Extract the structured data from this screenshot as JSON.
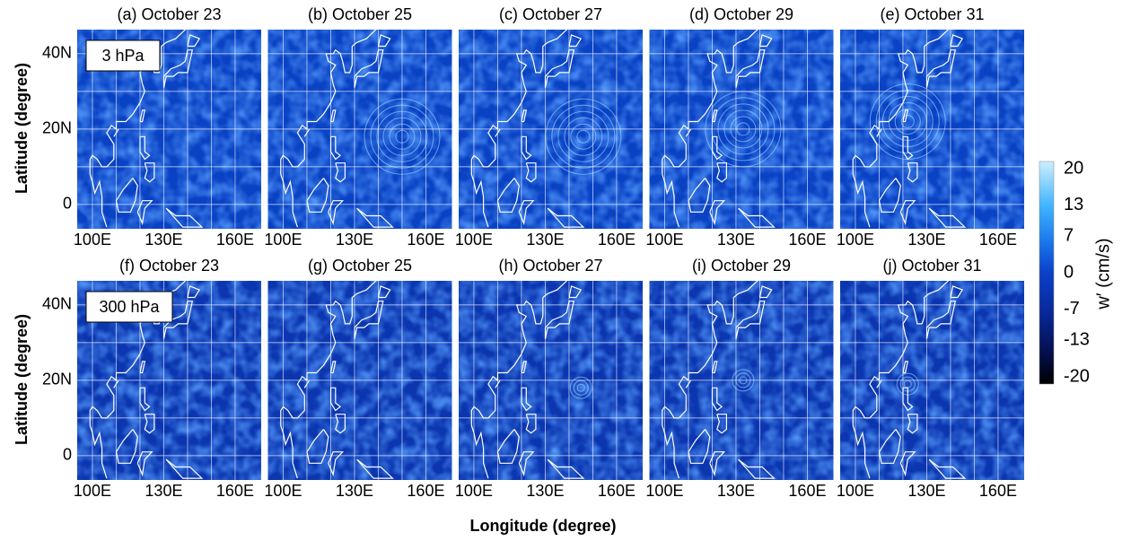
{
  "rows": [
    {
      "level": "3 hPa",
      "ylabel": "Latitude (degree)",
      "yticks": [
        "40N",
        "20N",
        "0"
      ],
      "panels": [
        {
          "title": "(a) October 23"
        },
        {
          "title": "(b) October 25"
        },
        {
          "title": "(c) October 27"
        },
        {
          "title": "(d) October 29"
        },
        {
          "title": "(e) October 31"
        }
      ]
    },
    {
      "level": "300 hPa",
      "ylabel": "Latitude (degree)",
      "yticks": [
        "40N",
        "20N",
        "0"
      ],
      "panels": [
        {
          "title": "(f) October 23"
        },
        {
          "title": "(g) October 25"
        },
        {
          "title": "(h) October 27"
        },
        {
          "title": "(i) October 29"
        },
        {
          "title": "(j) October 31"
        }
      ]
    }
  ],
  "xticks": [
    "100E",
    "130E",
    "160E"
  ],
  "xlabel": "Longitude (degree)",
  "colorbar": {
    "label": "w′ (cm/s)",
    "ticks": [
      20,
      13,
      7,
      0,
      -7,
      -13,
      -20
    ]
  }
}
